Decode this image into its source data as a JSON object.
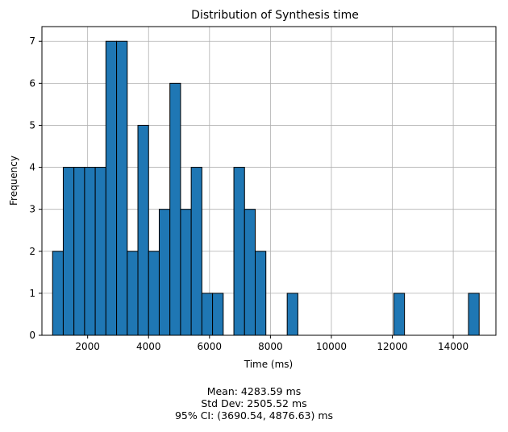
{
  "chart_data": {
    "type": "bar",
    "title": "Distribution of Synthesis time",
    "xlabel": "Time (ms)",
    "ylabel": "Frequency",
    "xlim": [
      500,
      15400
    ],
    "ylim": [
      0,
      7.35
    ],
    "xticks": [
      2000,
      4000,
      6000,
      8000,
      10000,
      12000,
      14000
    ],
    "yticks": [
      0,
      1,
      2,
      3,
      4,
      5,
      6,
      7
    ],
    "grid": true,
    "bar_color": "#1f77b4",
    "edge_color": "#000000",
    "bins": [
      {
        "start": 850,
        "end": 1200,
        "count": 2
      },
      {
        "start": 1200,
        "end": 1550,
        "count": 4
      },
      {
        "start": 1550,
        "end": 1900,
        "count": 4
      },
      {
        "start": 1900,
        "end": 2250,
        "count": 4
      },
      {
        "start": 2250,
        "end": 2600,
        "count": 4
      },
      {
        "start": 2600,
        "end": 2950,
        "count": 7
      },
      {
        "start": 2950,
        "end": 3300,
        "count": 7
      },
      {
        "start": 3300,
        "end": 3650,
        "count": 2
      },
      {
        "start": 3650,
        "end": 4000,
        "count": 5
      },
      {
        "start": 4000,
        "end": 4350,
        "count": 2
      },
      {
        "start": 4350,
        "end": 4700,
        "count": 3
      },
      {
        "start": 4700,
        "end": 5050,
        "count": 6
      },
      {
        "start": 5050,
        "end": 5400,
        "count": 3
      },
      {
        "start": 5400,
        "end": 5750,
        "count": 4
      },
      {
        "start": 5750,
        "end": 6100,
        "count": 1
      },
      {
        "start": 6100,
        "end": 6450,
        "count": 1
      },
      {
        "start": 6800,
        "end": 7150,
        "count": 4
      },
      {
        "start": 7150,
        "end": 7500,
        "count": 3
      },
      {
        "start": 7500,
        "end": 7850,
        "count": 2
      },
      {
        "start": 8550,
        "end": 8900,
        "count": 1
      },
      {
        "start": 12050,
        "end": 12400,
        "count": 1
      },
      {
        "start": 14500,
        "end": 14850,
        "count": 1
      }
    ]
  },
  "stats": {
    "mean": "Mean: 4283.59 ms",
    "std": "Std Dev: 2505.52 ms",
    "ci": "95% CI: (3690.54, 4876.63) ms"
  }
}
